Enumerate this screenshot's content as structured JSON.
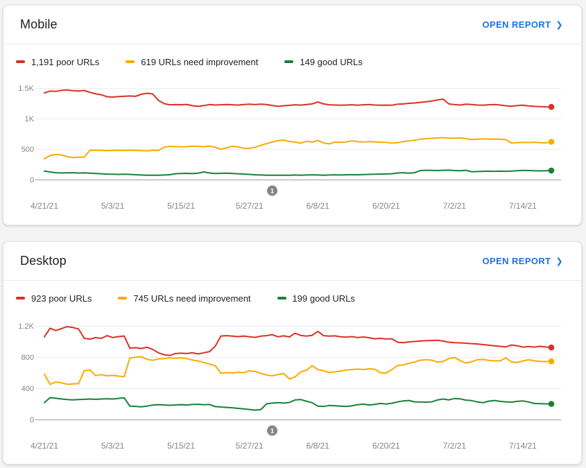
{
  "icons": {
    "chevron_right": "❯"
  },
  "colors": {
    "poor": "#d93025",
    "needs_improvement": "#f9ab00",
    "good": "#188038",
    "link": "#1a73e8",
    "axis_label": "#80868b",
    "annotation_badge": "#80868b"
  },
  "cards": [
    {
      "title": "Mobile",
      "open_report_label": "OPEN REPORT"
    },
    {
      "title": "Desktop",
      "open_report_label": "OPEN REPORT"
    }
  ],
  "chart_data": [
    {
      "type": "line",
      "title": "Mobile",
      "x_ticks": [
        "4/21/21",
        "5/3/21",
        "5/15/21",
        "5/27/21",
        "6/8/21",
        "6/20/21",
        "7/2/21",
        "7/14/21"
      ],
      "x_unit": "day",
      "days_per_tick": 12,
      "x_range_days": 90,
      "y_ticks": [
        {
          "label": "0",
          "value": 0
        },
        {
          "label": "500",
          "value": 500
        },
        {
          "label": "1K",
          "value": 1000
        },
        {
          "label": "1.5K",
          "value": 1500
        }
      ],
      "ylim": [
        0,
        1650
      ],
      "grid": true,
      "legend_position": "top",
      "annotations": [
        {
          "label": "1",
          "day": 40
        }
      ],
      "series": [
        {
          "id": "poor",
          "name": "poor URLs",
          "legend_label": "1,191 poor URLs",
          "current": 1191,
          "color": "#d93025",
          "values": [
            1420,
            1450,
            1445,
            1462,
            1468,
            1458,
            1452,
            1460,
            1430,
            1405,
            1390,
            1358,
            1352,
            1360,
            1365,
            1370,
            1365,
            1398,
            1415,
            1405,
            1300,
            1245,
            1225,
            1230,
            1226,
            1232,
            1210,
            1200,
            1212,
            1230,
            1222,
            1226,
            1230,
            1226,
            1220,
            1230,
            1236,
            1230,
            1236,
            1230,
            1215,
            1200,
            1210,
            1216,
            1226,
            1220,
            1230,
            1240,
            1272,
            1240,
            1226,
            1222,
            1218,
            1222,
            1226,
            1218,
            1226,
            1230,
            1222,
            1218,
            1220,
            1218,
            1236,
            1240,
            1250,
            1256,
            1266,
            1276,
            1288,
            1306,
            1318,
            1240,
            1228,
            1222,
            1236,
            1230,
            1222,
            1218,
            1226,
            1230,
            1222,
            1210,
            1202,
            1214,
            1218,
            1208,
            1200,
            1196,
            1192,
            1191
          ]
        },
        {
          "id": "needs_improvement",
          "name": "URLs need improvement",
          "legend_label": "619 URLs need improvement",
          "current": 619,
          "color": "#f9ab00",
          "values": [
            340,
            395,
            410,
            405,
            375,
            360,
            365,
            370,
            478,
            482,
            478,
            474,
            478,
            480,
            477,
            482,
            478,
            474,
            470,
            480,
            477,
            530,
            545,
            540,
            535,
            540,
            548,
            544,
            540,
            548,
            530,
            496,
            520,
            545,
            535,
            515,
            512,
            530,
            560,
            590,
            615,
            640,
            648,
            625,
            615,
            595,
            628,
            615,
            640,
            600,
            585,
            615,
            610,
            618,
            635,
            620,
            615,
            622,
            618,
            612,
            610,
            598,
            605,
            622,
            635,
            645,
            662,
            670,
            676,
            682,
            688,
            680,
            678,
            682,
            672,
            655,
            662,
            668,
            662,
            665,
            660,
            655,
            600,
            605,
            610,
            608,
            612,
            605,
            600,
            619
          ]
        },
        {
          "id": "good",
          "name": "good URLs",
          "legend_label": "149 good URLs",
          "current": 149,
          "color": "#188038",
          "values": [
            140,
            125,
            112,
            108,
            110,
            112,
            108,
            110,
            105,
            100,
            95,
            90,
            88,
            85,
            88,
            85,
            80,
            75,
            72,
            70,
            72,
            75,
            80,
            95,
            100,
            102,
            98,
            105,
            125,
            108,
            100,
            102,
            105,
            100,
            95,
            90,
            85,
            78,
            75,
            72,
            70,
            72,
            70,
            72,
            75,
            72,
            75,
            78,
            75,
            72,
            75,
            78,
            75,
            78,
            80,
            78,
            82,
            85,
            88,
            90,
            92,
            95,
            108,
            112,
            105,
            112,
            148,
            152,
            150,
            148,
            152,
            155,
            148,
            145,
            152,
            128,
            132,
            135,
            138,
            135,
            138,
            135,
            140,
            145,
            150,
            148,
            145,
            142,
            145,
            149
          ]
        }
      ]
    },
    {
      "type": "line",
      "title": "Desktop",
      "x_ticks": [
        "4/21/21",
        "5/3/21",
        "5/15/21",
        "5/27/21",
        "6/8/21",
        "6/20/21",
        "7/2/21",
        "7/14/21"
      ],
      "x_unit": "day",
      "days_per_tick": 12,
      "x_range_days": 90,
      "y_ticks": [
        {
          "label": "0",
          "value": 0
        },
        {
          "label": "400",
          "value": 400
        },
        {
          "label": "800",
          "value": 800
        },
        {
          "label": "1.2K",
          "value": 1200
        }
      ],
      "ylim": [
        0,
        1300
      ],
      "grid": true,
      "legend_position": "top",
      "annotations": [
        {
          "label": "1",
          "day": 40
        }
      ],
      "series": [
        {
          "id": "poor",
          "name": "poor URLs",
          "legend_label": "923 poor URLs",
          "current": 923,
          "color": "#d93025",
          "values": [
            1060,
            1170,
            1140,
            1165,
            1190,
            1180,
            1160,
            1040,
            1030,
            1050,
            1040,
            1075,
            1050,
            1062,
            1070,
            915,
            920,
            910,
            925,
            900,
            855,
            830,
            820,
            845,
            850,
            845,
            855,
            840,
            855,
            870,
            940,
            1070,
            1075,
            1068,
            1062,
            1068,
            1060,
            1052,
            1068,
            1075,
            1088,
            1060,
            1072,
            1058,
            1105,
            1078,
            1068,
            1078,
            1130,
            1075,
            1068,
            1072,
            1060,
            1055,
            1062,
            1050,
            1058,
            1048,
            1035,
            1040,
            1032,
            1035,
            990,
            985,
            995,
            1000,
            1005,
            1010,
            1012,
            1015,
            1005,
            990,
            985,
            982,
            978,
            972,
            968,
            960,
            952,
            945,
            938,
            930,
            955,
            945,
            928,
            935,
            928,
            938,
            930,
            923
          ]
        },
        {
          "id": "needs_improvement",
          "name": "URLs need improvement",
          "legend_label": "745 URLs need improvement",
          "current": 745,
          "color": "#f9ab00",
          "values": [
            580,
            450,
            480,
            470,
            452,
            456,
            460,
            625,
            632,
            562,
            575,
            560,
            565,
            556,
            548,
            788,
            798,
            805,
            772,
            758,
            775,
            780,
            790,
            786,
            790,
            780,
            762,
            750,
            730,
            710,
            690,
            592,
            600,
            596,
            605,
            600,
            625,
            615,
            590,
            570,
            560,
            575,
            590,
            520,
            545,
            610,
            630,
            690,
            640,
            625,
            600,
            610,
            620,
            635,
            640,
            645,
            640,
            650,
            644,
            600,
            596,
            640,
            692,
            700,
            720,
            736,
            760,
            766,
            760,
            736,
            745,
            780,
            795,
            755,
            722,
            740,
            766,
            770,
            758,
            751,
            751,
            790,
            738,
            730,
            750,
            766,
            752,
            745,
            742,
            745
          ]
        },
        {
          "id": "good",
          "name": "good URLs",
          "legend_label": "199 good URLs",
          "current": 199,
          "color": "#188038",
          "values": [
            215,
            280,
            272,
            262,
            255,
            252,
            256,
            258,
            262,
            258,
            262,
            266,
            262,
            270,
            278,
            172,
            168,
            162,
            172,
            185,
            190,
            186,
            182,
            186,
            190,
            186,
            192,
            195,
            188,
            192,
            165,
            160,
            155,
            150,
            142,
            135,
            128,
            120,
            126,
            200,
            210,
            215,
            210,
            218,
            250,
            255,
            235,
            215,
            172,
            166,
            180,
            176,
            172,
            166,
            176,
            190,
            196,
            186,
            194,
            205,
            198,
            208,
            225,
            238,
            244,
            226,
            224,
            222,
            226,
            250,
            262,
            252,
            268,
            264,
            248,
            242,
            225,
            215,
            235,
            244,
            232,
            226,
            222,
            232,
            238,
            224,
            205,
            203,
            200,
            199
          ]
        }
      ]
    }
  ]
}
